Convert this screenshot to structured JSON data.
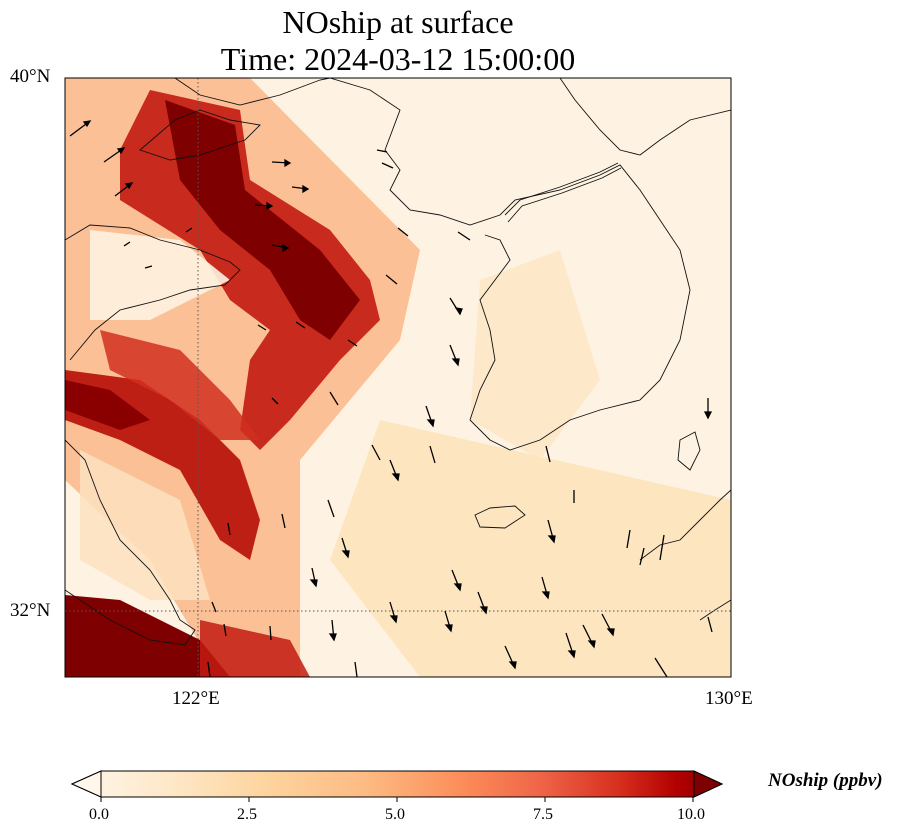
{
  "title": {
    "line1": "NOship at surface",
    "line2": "Time: 2024-03-12 15:00:00"
  },
  "map": {
    "lat_labels": [
      {
        "value": 40,
        "text": "40°N"
      },
      {
        "value": 32,
        "text": "32°N"
      }
    ],
    "lon_labels": [
      {
        "value": 122,
        "text": "122°E"
      },
      {
        "value": 130,
        "text": "130°E"
      }
    ],
    "extent": {
      "lon_min": 120,
      "lon_max": 130,
      "lat_min": 31,
      "lat_max": 40
    },
    "gridlines": "dotted at 122°E and 32°N"
  },
  "colorbar": {
    "label": "NOship (ppbv)",
    "ticks": [
      "0.0",
      "2.5",
      "5.0",
      "7.5",
      "10.0"
    ],
    "range": [
      0,
      10
    ],
    "extend": "both",
    "colors": [
      "#fff7ec",
      "#fee8c8",
      "#fdd49e",
      "#fdbb84",
      "#fc8d59",
      "#ef6548",
      "#d7301f",
      "#b30000",
      "#7f0000"
    ]
  }
}
